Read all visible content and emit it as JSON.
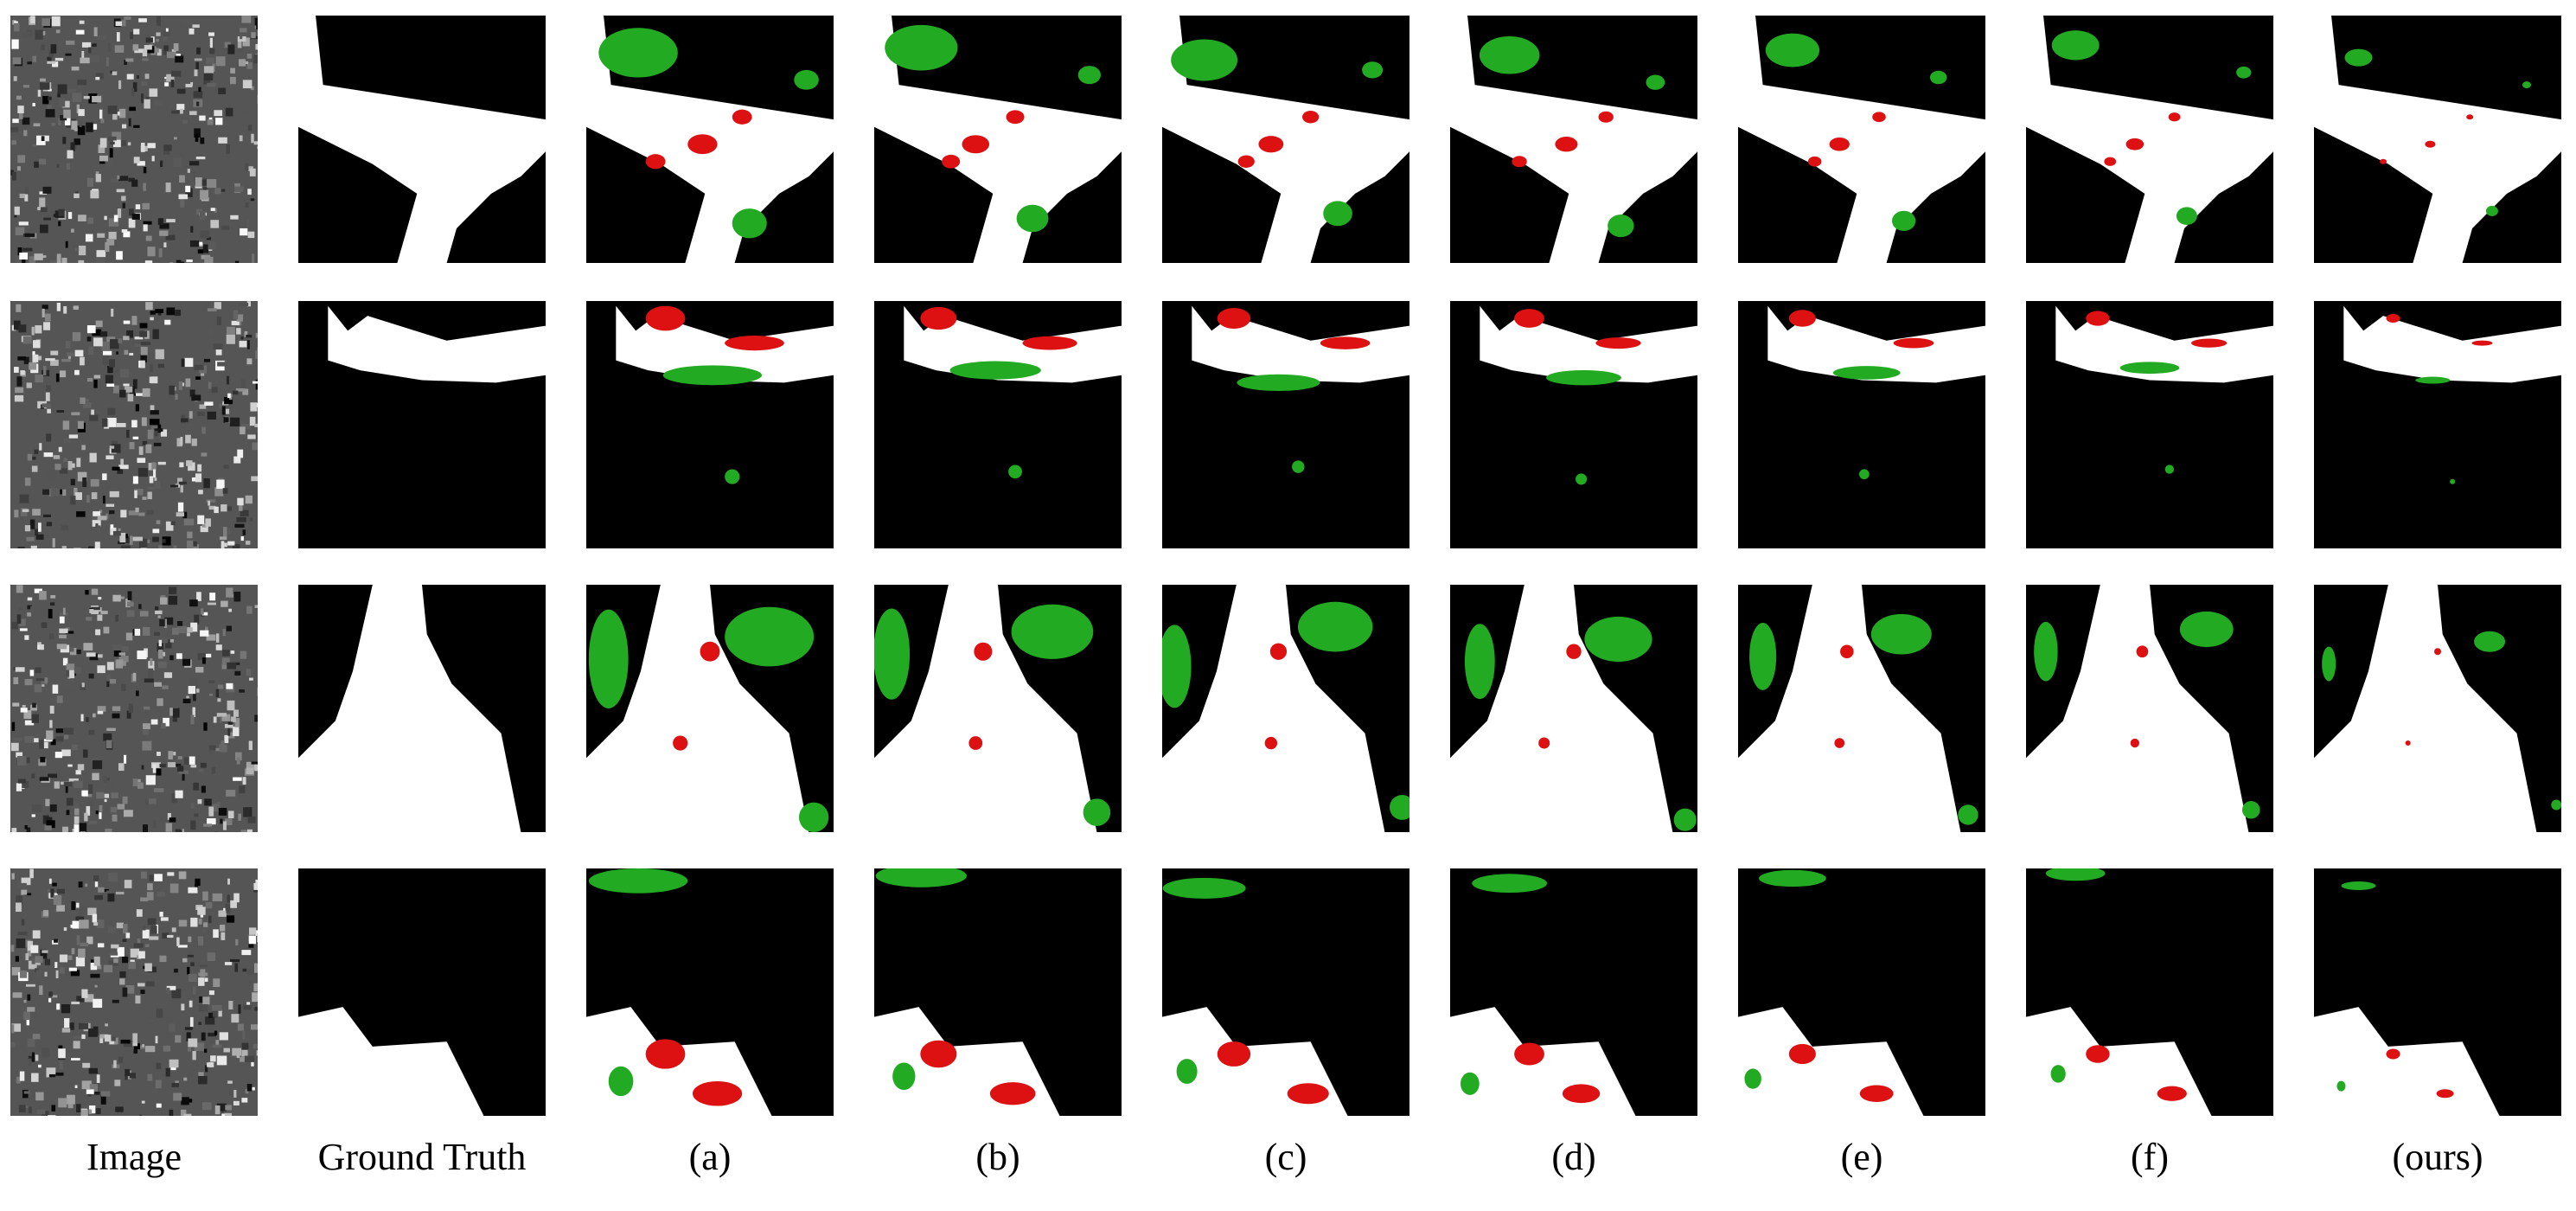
{
  "columns": [
    "Image",
    "Ground Truth",
    "(a)",
    "(b)",
    "(c)",
    "(d)",
    "(e)",
    "(f)",
    "(ours)"
  ],
  "colors": {
    "background": "#000000",
    "foreground": "#ffffff",
    "missed": "#22aa22",
    "false_alarm": "#dd1111"
  },
  "rows": 4
}
